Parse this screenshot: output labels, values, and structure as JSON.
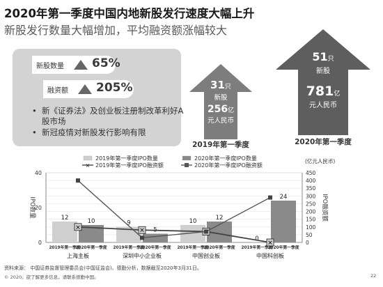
{
  "header": {
    "title": "2020年第一季度中国内地新股发行速度大幅上升",
    "subtitle": "新股发行数量大幅增加，平均融资额涨幅较大"
  },
  "summary": {
    "stats": [
      {
        "label": "新股数量",
        "value": "65%"
      },
      {
        "label": "融资额",
        "value": "205%"
      }
    ],
    "bullets": [
      "新《证券法》及创业板注册制改革利好A股市场",
      "新冠疫情对新股发行影响有限"
    ]
  },
  "comparison": {
    "q1_2019": {
      "count": "31",
      "count_unit": "只",
      "count_label": "新股",
      "amount": "256",
      "amount_unit": "亿",
      "amount_label": "元人民币",
      "caption": "2019年第一季度"
    },
    "q1_2020": {
      "count": "51",
      "count_unit": "只",
      "count_label": "新股",
      "amount": "781",
      "amount_unit": "亿",
      "amount_label": "元人民币",
      "caption": "2020年第一季度"
    },
    "colors": {
      "q1_2019": "#7d7d7d",
      "q1_2020": "#5e5e5e"
    }
  },
  "chart_data": {
    "type": "bar",
    "categories": [
      "上海主板",
      "深圳中小企业板",
      "中国创业板",
      "中国科创板"
    ],
    "sub_labels": [
      "2019年第一季度",
      "2020年第一季度"
    ],
    "unit_note": "(亿元人民币)",
    "y_left": {
      "label": "IPO数量",
      "ticks": [
        0,
        20,
        40
      ],
      "range": [
        0,
        40
      ]
    },
    "y_right": {
      "label": "IPO融资额",
      "ticks": [
        0,
        50,
        100,
        150,
        200,
        250,
        300,
        350,
        400,
        450
      ],
      "range": [
        0,
        450
      ]
    },
    "series": [
      {
        "name": "2019年第一季度IPO数量",
        "kind": "bar",
        "axis": "left",
        "color": "#cfcfcf",
        "values": [
          12,
          9,
          10,
          0
        ]
      },
      {
        "name": "2020年第一季度IPO数量",
        "kind": "bar",
        "axis": "left",
        "color": "#8a8a8a",
        "values": [
          10,
          5,
          12,
          24
        ]
      },
      {
        "name": "2019年第一季度IPO融资额",
        "kind": "line",
        "axis": "right",
        "color": "#444444",
        "values": [
          100,
          80,
          70,
          0
        ]
      },
      {
        "name": "2020年第一季度IPO融资额",
        "kind": "line",
        "axis": "right",
        "color": "#555555",
        "values": [
          400,
          30,
          70,
          290
        ]
      }
    ],
    "bar_labels": [
      [
        "12",
        "10"
      ],
      [
        "9",
        "5"
      ],
      [
        "10",
        "12"
      ],
      [
        "0",
        "24"
      ]
    ],
    "grid": true,
    "legend_position": "top"
  },
  "footer": {
    "source": "资料来源：  中国证券监督管理委员会(中国证监会)、德勤分析，数据截至2020年3月31日。",
    "copyright": "© 2020。欲了解更多信息，请联系德勤中国。",
    "page": "22"
  }
}
